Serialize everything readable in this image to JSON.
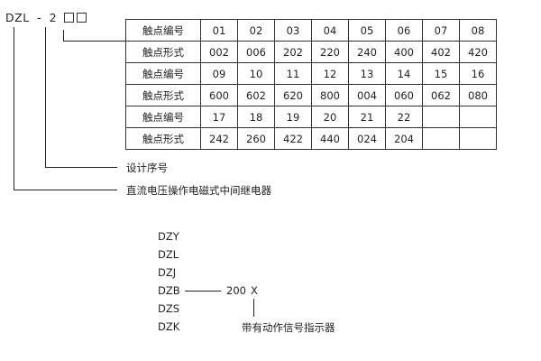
{
  "model_code": {
    "prefix": "DZL",
    "dash": "-",
    "digit": "2"
  },
  "table": {
    "rows": [
      {
        "label": "触点编号",
        "cells": [
          "01",
          "02",
          "03",
          "04",
          "05",
          "06",
          "07",
          "08"
        ]
      },
      {
        "label": "触点形式",
        "cells": [
          "002",
          "006",
          "202",
          "220",
          "240",
          "400",
          "402",
          "420"
        ]
      },
      {
        "label": "触点编号",
        "cells": [
          "09",
          "10",
          "11",
          "12",
          "13",
          "14",
          "15",
          "16"
        ]
      },
      {
        "label": "触点形式",
        "cells": [
          "600",
          "602",
          "620",
          "800",
          "004",
          "060",
          "062",
          "080"
        ]
      },
      {
        "label": "触点编号",
        "cells": [
          "17",
          "18",
          "19",
          "20",
          "21",
          "22",
          "",
          ""
        ]
      },
      {
        "label": "触点形式",
        "cells": [
          "242",
          "260",
          "422",
          "440",
          "024",
          "204",
          "",
          ""
        ]
      }
    ]
  },
  "annotations": {
    "design_serial": "设计序号",
    "relay_type": "直流电压操作电磁式中间继电器"
  },
  "series_list": [
    "DZY",
    "DZL",
    "DZJ",
    "DZB",
    "DZS",
    "DZK"
  ],
  "example": {
    "number": "200",
    "suffix": "X",
    "suffix_meaning": "带有动作信号指示器"
  }
}
